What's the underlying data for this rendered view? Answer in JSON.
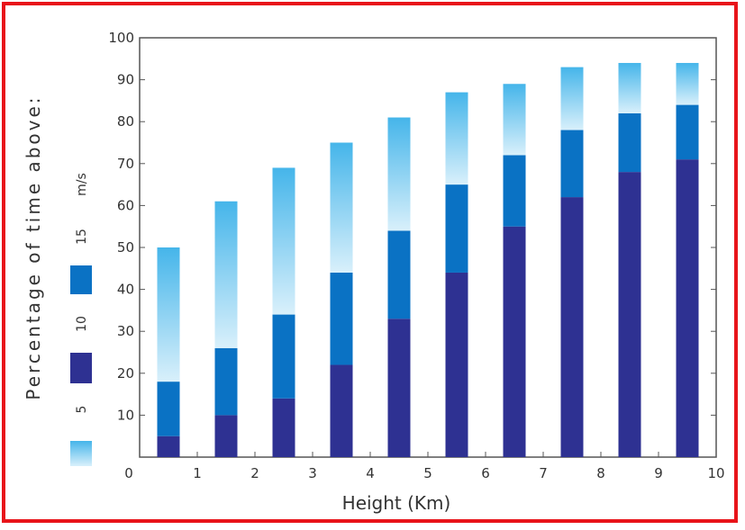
{
  "chart_data": {
    "type": "bar",
    "stacked": true,
    "x": [
      0.5,
      1.5,
      2.5,
      3.5,
      4.5,
      5.5,
      6.5,
      7.5,
      8.5,
      9.5
    ],
    "series": [
      {
        "name": "5",
        "color": "#2e3192",
        "values": [
          5,
          10,
          14,
          22,
          33,
          44,
          55,
          62,
          68,
          71
        ]
      },
      {
        "name": "10",
        "color": "#0a72c4",
        "values": [
          13,
          16,
          20,
          22,
          21,
          21,
          17,
          16,
          14,
          13
        ]
      },
      {
        "name": "15",
        "color": "#5bc4ee",
        "values": [
          32,
          35,
          35,
          31,
          27,
          22,
          17,
          15,
          12,
          10
        ]
      }
    ],
    "totals": [
      50,
      61,
      69,
      75,
      81,
      87,
      89,
      93,
      94,
      94
    ],
    "xlabel": "Height (Km)",
    "ylabel": "Percentage of time above:",
    "xlim": [
      0,
      10
    ],
    "ylim": [
      0,
      100
    ],
    "x_ticks": [
      "0",
      "1",
      "2",
      "3",
      "4",
      "5",
      "6",
      "7",
      "8",
      "9",
      "10"
    ],
    "y_ticks": [
      "0",
      "10",
      "20",
      "30",
      "40",
      "50",
      "60",
      "70",
      "80",
      "90",
      "100"
    ],
    "legend": {
      "placement": "left, vertical",
      "labels": [
        "5",
        "10",
        "15"
      ],
      "unit": "m/s"
    },
    "grid": false
  },
  "colors": {
    "frame": "#e8141a",
    "axis": "#555555"
  }
}
